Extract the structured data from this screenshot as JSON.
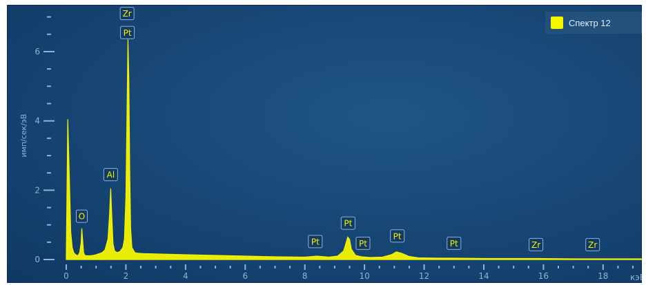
{
  "legend": {
    "label": "Спектр 12",
    "color": "#f5f500"
  },
  "chart_data": {
    "type": "line",
    "title": "",
    "xlabel": "кэВ",
    "ylabel": "имп/сек/эВ",
    "xlim": [
      0,
      19.3
    ],
    "ylim": [
      0,
      7.35
    ],
    "x_ticks": [
      0,
      2,
      4,
      6,
      8,
      10,
      12,
      14,
      16,
      18
    ],
    "y_ticks": [
      0,
      2,
      4,
      6
    ],
    "grid": false,
    "legend_position": "top-right",
    "series": [
      {
        "name": "Спектр 12",
        "color": "#f5f500",
        "x": [
          0.0,
          0.05,
          0.1,
          0.15,
          0.2,
          0.25,
          0.3,
          0.35,
          0.4,
          0.45,
          0.5,
          0.52,
          0.55,
          0.58,
          0.62,
          0.7,
          0.8,
          0.9,
          1.0,
          1.1,
          1.2,
          1.3,
          1.4,
          1.45,
          1.49,
          1.53,
          1.57,
          1.62,
          1.7,
          1.8,
          1.9,
          1.95,
          2.0,
          2.04,
          2.07,
          2.1,
          2.13,
          2.16,
          2.2,
          2.3,
          2.4,
          2.6,
          3.0,
          4.0,
          5.0,
          6.0,
          7.0,
          8.0,
          8.4,
          8.8,
          9.1,
          9.3,
          9.44,
          9.5,
          9.56,
          9.7,
          9.9,
          10.2,
          10.6,
          10.9,
          11.07,
          11.25,
          11.5,
          11.8,
          12.5,
          13.0,
          14.0,
          15.0,
          15.8,
          17.0,
          18.0,
          19.3
        ],
        "values": [
          0.05,
          4.05,
          2.5,
          0.8,
          0.35,
          0.2,
          0.15,
          0.12,
          0.12,
          0.2,
          0.5,
          0.9,
          0.55,
          0.2,
          0.12,
          0.11,
          0.11,
          0.12,
          0.14,
          0.17,
          0.2,
          0.28,
          0.6,
          1.3,
          2.05,
          1.2,
          0.45,
          0.25,
          0.2,
          0.23,
          0.35,
          0.6,
          1.8,
          4.5,
          6.35,
          5.2,
          2.5,
          0.9,
          0.35,
          0.2,
          0.18,
          0.17,
          0.16,
          0.14,
          0.12,
          0.1,
          0.08,
          0.07,
          0.1,
          0.07,
          0.1,
          0.25,
          0.65,
          0.58,
          0.3,
          0.12,
          0.08,
          0.06,
          0.07,
          0.14,
          0.22,
          0.18,
          0.09,
          0.05,
          0.04,
          0.04,
          0.03,
          0.03,
          0.03,
          0.02,
          0.02,
          0.02
        ]
      }
    ],
    "peak_labels": [
      {
        "text": "Zr",
        "x": 2.04,
        "y": 7.1
      },
      {
        "text": "Pt",
        "x": 2.05,
        "y": 6.55
      },
      {
        "text": "Al",
        "x": 1.49,
        "y": 2.45
      },
      {
        "text": "O",
        "x": 0.52,
        "y": 1.25
      },
      {
        "text": "Pt",
        "x": 8.35,
        "y": 0.52
      },
      {
        "text": "Pt",
        "x": 9.45,
        "y": 1.05
      },
      {
        "text": "Pt",
        "x": 9.95,
        "y": 0.47
      },
      {
        "text": "Pt",
        "x": 11.1,
        "y": 0.68
      },
      {
        "text": "Pt",
        "x": 13.0,
        "y": 0.47
      },
      {
        "text": "Zr",
        "x": 15.75,
        "y": 0.43
      },
      {
        "text": "Zr",
        "x": 17.65,
        "y": 0.43
      }
    ]
  }
}
